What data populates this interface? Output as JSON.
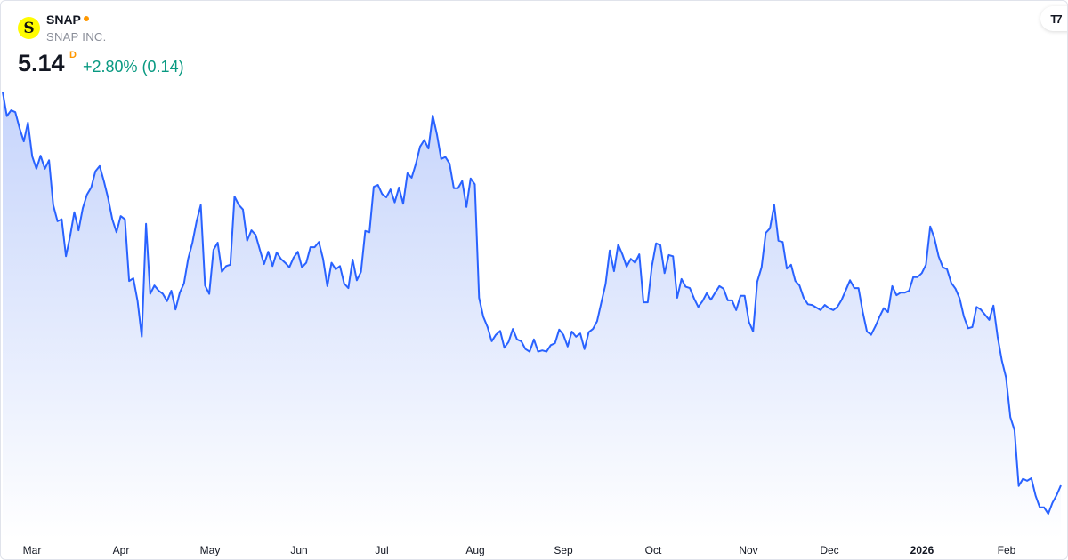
{
  "header": {
    "ticker": "SNAP",
    "company": "SNAP INC.",
    "logo_letter": "S",
    "price": "5.14",
    "period": "D",
    "change": "+2.80% (0.14)",
    "brand_logo": "TV"
  },
  "colors": {
    "line": "#2962ff",
    "fill_top": "#c3d2fb",
    "change_positive": "#089981",
    "status_dot": "#ff9800",
    "logo_bg": "#fffc00"
  },
  "chart_data": {
    "type": "area",
    "title": "",
    "xlabel": "",
    "ylabel": "",
    "y_axis_visible": false,
    "grid": false,
    "x_tick_labels": [
      "Mar",
      "Apr",
      "May",
      "Jun",
      "Jul",
      "Aug",
      "Sep",
      "Oct",
      "Nov",
      "Dec",
      "2026",
      "Feb"
    ],
    "ylim": [
      4.4,
      11.4
    ],
    "series": [
      {
        "values": [
          11.2,
          10.83,
          10.92,
          10.89,
          10.65,
          10.44,
          10.73,
          10.21,
          10.02,
          10.22,
          10.02,
          10.15,
          9.46,
          9.21,
          9.24,
          8.67,
          8.98,
          9.35,
          9.07,
          9.41,
          9.62,
          9.73,
          9.98,
          10.06,
          9.83,
          9.57,
          9.24,
          9.04,
          9.29,
          9.24,
          8.29,
          8.33,
          7.98,
          7.43,
          9.17,
          8.09,
          8.22,
          8.14,
          8.09,
          7.98,
          8.14,
          7.85,
          8.11,
          8.25,
          8.63,
          8.88,
          9.21,
          9.46,
          8.22,
          8.09,
          8.77,
          8.88,
          8.43,
          8.52,
          8.54,
          9.59,
          9.46,
          9.39,
          8.91,
          9.07,
          9.0,
          8.77,
          8.55,
          8.74,
          8.52,
          8.73,
          8.63,
          8.57,
          8.5,
          8.65,
          8.74,
          8.5,
          8.57,
          8.81,
          8.81,
          8.89,
          8.63,
          8.21,
          8.57,
          8.47,
          8.52,
          8.25,
          8.18,
          8.62,
          8.3,
          8.43,
          9.06,
          9.04,
          9.74,
          9.77,
          9.63,
          9.58,
          9.7,
          9.5,
          9.73,
          9.48,
          9.95,
          9.88,
          10.09,
          10.36,
          10.46,
          10.33,
          10.84,
          10.55,
          10.17,
          10.2,
          10.1,
          9.72,
          9.72,
          9.83,
          9.43,
          9.87,
          9.78,
          8.03,
          7.74,
          7.58,
          7.36,
          7.46,
          7.52,
          7.26,
          7.35,
          7.55,
          7.39,
          7.36,
          7.24,
          7.2,
          7.39,
          7.2,
          7.22,
          7.2,
          7.3,
          7.33,
          7.54,
          7.46,
          7.28,
          7.51,
          7.43,
          7.48,
          7.24,
          7.5,
          7.55,
          7.67,
          7.96,
          8.24,
          8.76,
          8.44,
          8.85,
          8.7,
          8.51,
          8.63,
          8.57,
          8.7,
          7.96,
          7.96,
          8.52,
          8.87,
          8.84,
          8.41,
          8.69,
          8.67,
          8.03,
          8.32,
          8.2,
          8.18,
          8.02,
          7.89,
          7.98,
          8.1,
          8.0,
          8.11,
          8.21,
          8.17,
          7.99,
          7.99,
          7.84,
          8.06,
          8.06,
          7.66,
          7.51,
          8.28,
          8.5,
          9.03,
          9.1,
          9.46,
          8.91,
          8.89,
          8.48,
          8.54,
          8.29,
          8.22,
          8.03,
          7.93,
          7.92,
          7.88,
          7.84,
          7.92,
          7.87,
          7.84,
          7.89,
          8.0,
          8.15,
          8.3,
          8.18,
          8.18,
          7.81,
          7.51,
          7.46,
          7.59,
          7.74,
          7.87,
          7.81,
          8.21,
          8.07,
          8.11,
          8.11,
          8.14,
          8.35,
          8.35,
          8.41,
          8.54,
          9.13,
          8.95,
          8.67,
          8.5,
          8.47,
          8.26,
          8.17,
          8.02,
          7.74,
          7.56,
          7.58,
          7.89,
          7.85,
          7.77,
          7.69,
          7.91,
          7.43,
          7.06,
          6.8,
          6.19,
          5.99,
          5.13,
          5.24,
          5.21,
          5.25,
          4.98,
          4.8,
          4.8,
          4.7,
          4.87,
          4.99,
          5.14
        ]
      }
    ]
  }
}
